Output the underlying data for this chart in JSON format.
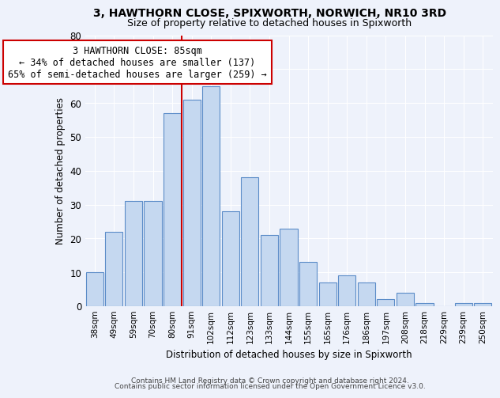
{
  "title": "3, HAWTHORN CLOSE, SPIXWORTH, NORWICH, NR10 3RD",
  "subtitle": "Size of property relative to detached houses in Spixworth",
  "xlabel": "Distribution of detached houses by size in Spixworth",
  "ylabel": "Number of detached properties",
  "bar_labels": [
    "38sqm",
    "49sqm",
    "59sqm",
    "70sqm",
    "80sqm",
    "91sqm",
    "102sqm",
    "112sqm",
    "123sqm",
    "133sqm",
    "144sqm",
    "155sqm",
    "165sqm",
    "176sqm",
    "186sqm",
    "197sqm",
    "208sqm",
    "218sqm",
    "229sqm",
    "239sqm",
    "250sqm"
  ],
  "bar_values": [
    10,
    22,
    31,
    31,
    57,
    61,
    65,
    28,
    38,
    21,
    23,
    13,
    7,
    9,
    7,
    2,
    4,
    1,
    0,
    1,
    1
  ],
  "bar_color": "#c5d8f0",
  "bar_edge_color": "#5b8cc8",
  "vline_x": 4.5,
  "vline_color": "#cc0000",
  "annotation_text": "3 HAWTHORN CLOSE: 85sqm\n← 34% of detached houses are smaller (137)\n65% of semi-detached houses are larger (259) →",
  "annotation_box_color": "white",
  "annotation_box_edge": "#cc0000",
  "ylim": [
    0,
    80
  ],
  "yticks": [
    0,
    10,
    20,
    30,
    40,
    50,
    60,
    70,
    80
  ],
  "footer1": "Contains HM Land Registry data © Crown copyright and database right 2024.",
  "footer2": "Contains public sector information licensed under the Open Government Licence v3.0.",
  "background_color": "#eef2fb",
  "title_fontsize": 10,
  "subtitle_fontsize": 9,
  "ann_fontsize": 8.5
}
